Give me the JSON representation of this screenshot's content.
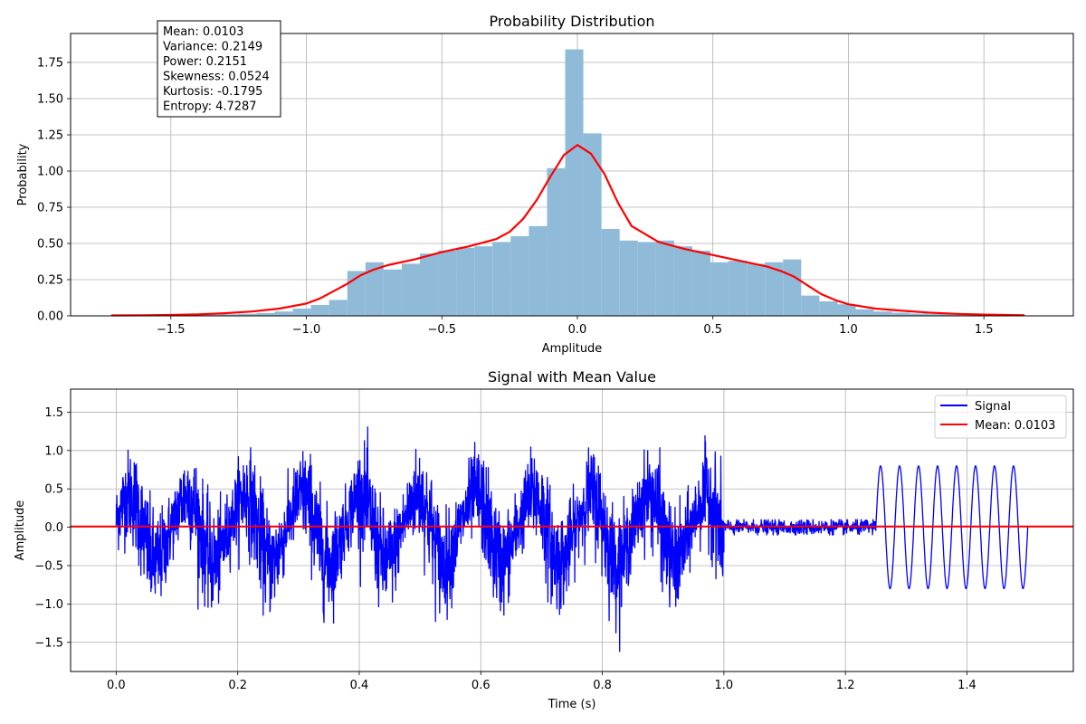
{
  "chart_data": [
    {
      "type": "bar",
      "title": "Probability Distribution",
      "xlabel": "Amplitude",
      "ylabel": "Probability",
      "xlim": [
        -1.87,
        1.83
      ],
      "ylim": [
        0.0,
        1.95
      ],
      "xticks": [
        -1.5,
        -1.0,
        -0.5,
        0.0,
        0.5,
        1.0,
        1.5
      ],
      "xtick_labels": [
        "−1.5",
        "−1.0",
        "−0.5",
        "0.0",
        "0.5",
        "1.0",
        "1.5"
      ],
      "yticks": [
        0.0,
        0.25,
        0.5,
        0.75,
        1.0,
        1.25,
        1.5,
        1.75
      ],
      "ytick_labels": [
        "0.00",
        "0.25",
        "0.50",
        "0.75",
        "1.00",
        "1.25",
        "1.50",
        "1.75"
      ],
      "grid": true,
      "histogram": {
        "color": "#8fbbd9",
        "bin_edges": [
          -1.72,
          -1.653,
          -1.586,
          -1.519,
          -1.452,
          -1.385,
          -1.318,
          -1.251,
          -1.184,
          -1.117,
          -1.05,
          -0.983,
          -0.916,
          -0.849,
          -0.782,
          -0.715,
          -0.648,
          -0.581,
          -0.514,
          -0.447,
          -0.38,
          -0.313,
          -0.246,
          -0.179,
          -0.112,
          -0.045,
          0.022,
          0.089,
          0.156,
          0.223,
          0.29,
          0.357,
          0.424,
          0.491,
          0.558,
          0.625,
          0.692,
          0.759,
          0.826,
          0.893,
          0.96,
          1.027,
          1.094,
          1.161,
          1.228,
          1.295,
          1.362,
          1.429,
          1.496,
          1.563,
          1.63
        ],
        "values": [
          0.002,
          0.002,
          0.003,
          0.004,
          0.006,
          0.008,
          0.011,
          0.015,
          0.02,
          0.03,
          0.05,
          0.075,
          0.11,
          0.31,
          0.37,
          0.32,
          0.36,
          0.43,
          0.45,
          0.47,
          0.48,
          0.51,
          0.55,
          0.62,
          1.02,
          1.84,
          1.26,
          0.6,
          0.52,
          0.51,
          0.52,
          0.48,
          0.45,
          0.37,
          0.38,
          0.36,
          0.37,
          0.39,
          0.14,
          0.1,
          0.08,
          0.045,
          0.03,
          0.022,
          0.016,
          0.012,
          0.009,
          0.006,
          0.004,
          0.003
        ]
      },
      "kde": {
        "color": "#ff0000",
        "x": [
          -1.72,
          -1.6,
          -1.5,
          -1.4,
          -1.3,
          -1.2,
          -1.1,
          -1.0,
          -0.95,
          -0.9,
          -0.85,
          -0.8,
          -0.75,
          -0.7,
          -0.6,
          -0.5,
          -0.4,
          -0.3,
          -0.25,
          -0.2,
          -0.15,
          -0.1,
          -0.05,
          0.0,
          0.05,
          0.1,
          0.15,
          0.2,
          0.3,
          0.4,
          0.5,
          0.6,
          0.7,
          0.75,
          0.8,
          0.85,
          0.9,
          0.95,
          1.0,
          1.1,
          1.2,
          1.3,
          1.4,
          1.5,
          1.65
        ],
        "y": [
          0.003,
          0.004,
          0.006,
          0.01,
          0.018,
          0.03,
          0.05,
          0.085,
          0.12,
          0.17,
          0.22,
          0.28,
          0.32,
          0.35,
          0.39,
          0.44,
          0.48,
          0.53,
          0.58,
          0.67,
          0.8,
          0.96,
          1.11,
          1.18,
          1.12,
          0.98,
          0.78,
          0.62,
          0.51,
          0.46,
          0.42,
          0.38,
          0.34,
          0.31,
          0.27,
          0.21,
          0.15,
          0.11,
          0.08,
          0.05,
          0.035,
          0.022,
          0.014,
          0.009,
          0.004
        ]
      },
      "annotation": {
        "lines": [
          "Mean: 0.0103",
          "Variance: 0.2149",
          "Power: 0.2151",
          "Skewness: 0.0524",
          "Kurtosis: -0.1795",
          "Entropy: 4.7287"
        ],
        "placement": "top-left"
      }
    },
    {
      "type": "line",
      "title": "Signal with Mean Value",
      "xlabel": "Time (s)",
      "ylabel": "Amplitude",
      "xlim": [
        -0.075,
        1.575
      ],
      "ylim": [
        -1.88,
        1.8
      ],
      "xticks": [
        0.0,
        0.2,
        0.4,
        0.6,
        0.8,
        1.0,
        1.2,
        1.4
      ],
      "xtick_labels": [
        "0.0",
        "0.2",
        "0.4",
        "0.6",
        "0.8",
        "1.0",
        "1.2",
        "1.4"
      ],
      "yticks": [
        -1.5,
        -1.0,
        -0.5,
        0.0,
        0.5,
        1.0,
        1.5
      ],
      "ytick_labels": [
        "−1.5",
        "−1.0",
        "−0.5",
        "0.0",
        "0.5",
        "1.0",
        "1.5"
      ],
      "grid": true,
      "legend_placement": "top-right",
      "series": [
        {
          "name": "Signal",
          "color": "#0000ff",
          "segments": [
            {
              "t_start": 0.0,
              "t_end": 1.0,
              "kind": "noisy burst",
              "peak": 1.65,
              "trough": -1.73,
              "burst_period_s": 0.095
            },
            {
              "t_start": 1.0,
              "t_end": 1.25,
              "kind": "low noise",
              "amplitude": 0.1
            },
            {
              "t_start": 1.25,
              "t_end": 1.5,
              "kind": "sine",
              "amplitude": 0.8,
              "cycles": 8
            }
          ]
        },
        {
          "name": "Mean: 0.0103",
          "color": "#ff0000",
          "value": 0.0103
        }
      ]
    }
  ]
}
